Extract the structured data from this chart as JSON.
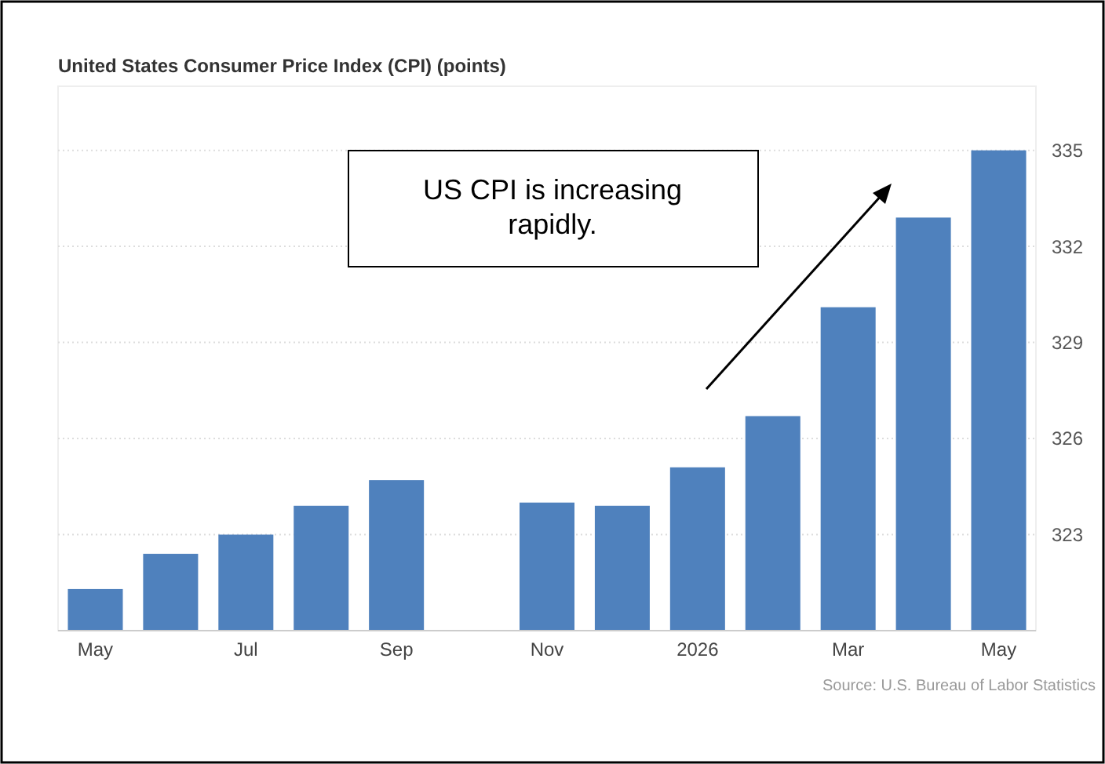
{
  "chart_data": {
    "type": "bar",
    "title": "United States Consumer Price Index (CPI) (points)",
    "categories": [
      "May",
      null,
      "Jul",
      null,
      "Sep",
      null,
      "Nov",
      null,
      "2026",
      null,
      "Mar",
      null,
      "May"
    ],
    "values": [
      321.3,
      322.4,
      323.0,
      323.9,
      324.7,
      null,
      324.0,
      323.9,
      325.1,
      326.7,
      330.1,
      332.9,
      335.0
    ],
    "color": "#4f81bd",
    "ylim": [
      320,
      337
    ],
    "yticks": [
      323,
      326,
      329,
      332,
      335
    ],
    "grid": "y",
    "annotations": [
      "US CPI is increasing rapidly.",
      "Source: U.S. Bureau of Labor Statistics"
    ]
  }
}
